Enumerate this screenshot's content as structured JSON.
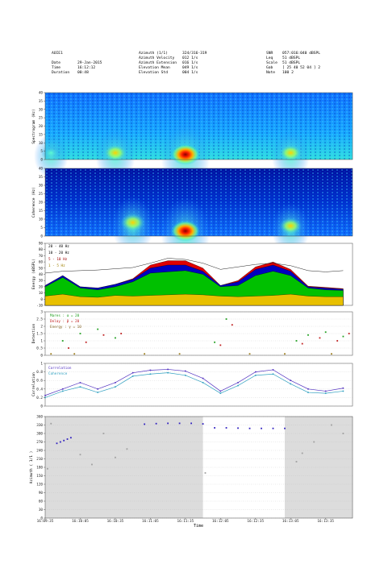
{
  "header": {
    "station": "AOIE1",
    "col1": [
      {
        "label": "Date",
        "value": "29-Jan-2015"
      },
      {
        "label": "Time",
        "value": "16:12:12"
      },
      {
        "label": "Duration",
        "value": "00:48"
      }
    ],
    "col2": [
      {
        "label": "Azimuth (1/1)",
        "value": "324/316-319"
      },
      {
        "label": "Azimuth Velocity",
        "value": "012 1/s"
      },
      {
        "label": "Azimuth Extension",
        "value": "016 1/s"
      },
      {
        "label": "Elevation Mean",
        "value": "049 1/s"
      },
      {
        "label": "Elevation Std",
        "value": "004 1/s"
      }
    ],
    "col3": [
      {
        "label": "SNR",
        "value": "057:016:040 dBSPL"
      },
      {
        "label": "Leq",
        "value": "51 dBSPL"
      },
      {
        "label": "Scale",
        "value": "51 dBSPL"
      },
      {
        "label": "Gab",
        "value": "[ 25 40 52 04 ] 2"
      },
      {
        "label": "Note",
        "value": "100 2"
      }
    ]
  },
  "panels": {
    "spectrogram": {
      "ylabel": "Spectrogram (Hz)",
      "yticks": [
        "0",
        "5",
        "10",
        "15",
        "20",
        "25",
        "30",
        "35",
        "40"
      ]
    },
    "coherence": {
      "ylabel": "Coherence (Hz)",
      "yticks": [
        "0",
        "5",
        "10",
        "15",
        "20",
        "25",
        "30",
        "35",
        "40"
      ]
    },
    "energy": {
      "ylabel": "Energy (dBSPL)",
      "yticks": [
        "-10",
        "0",
        "10",
        "20",
        "30",
        "40",
        "50",
        "60",
        "70",
        "80",
        "90"
      ]
    },
    "detection": {
      "ylabel": "Detection",
      "yticks": [
        "0",
        "0.5",
        "1",
        "1.5",
        "2",
        "2.5",
        "3"
      ]
    },
    "correlation": {
      "ylabel": "Correlation",
      "yticks": [
        "0",
        "0.2",
        "0.4",
        "0.6",
        "0.8",
        "1"
      ]
    },
    "azimuth": {
      "ylabel": "Azimuth ( 1/1 )",
      "yticks": [
        "0",
        "30",
        "60",
        "90",
        "120",
        "150",
        "180",
        "210",
        "240",
        "270",
        "300",
        "330",
        "360"
      ]
    }
  },
  "xlabel": "Time",
  "xticks": [
    "16:09:35",
    "16:10:05",
    "16:10:35",
    "16:11:05",
    "16:11:35",
    "16:12:05",
    "16:12:35",
    "16:13:05",
    "16:13:35"
  ],
  "chart_data": [
    {
      "type": "heatmap",
      "name": "spectrogram",
      "ylabel": "Spectrogram (Hz)",
      "ylim": [
        0,
        40
      ],
      "hotspots": [
        {
          "t": "16:11:35",
          "f_hz": 3,
          "level": 1.0
        },
        {
          "t": "16:10:35",
          "f_hz": 4,
          "level": 0.75
        },
        {
          "t": "16:13:05",
          "f_hz": 4,
          "level": 0.7
        },
        {
          "t": "16:09:40",
          "f_hz": 4,
          "level": 0.6
        }
      ]
    },
    {
      "type": "heatmap",
      "name": "coherence",
      "ylabel": "Coherence (Hz)",
      "ylim": [
        0,
        40
      ],
      "hotspots": [
        {
          "t": "16:11:35",
          "f_hz": 3,
          "level": 1.0
        },
        {
          "t": "16:10:50",
          "f_hz": 8,
          "level": 0.8
        },
        {
          "t": "16:13:05",
          "f_hz": 6,
          "level": 0.7
        }
      ]
    },
    {
      "type": "area",
      "name": "energy",
      "ylabel": "Energy (dBSPL)",
      "ylim": [
        -10,
        90
      ],
      "legend": [
        "20 - 40 Hz",
        "10 - 20 Hz",
        "5 - 10 Hz",
        "1 - 5 Hz"
      ],
      "x": [
        "16:09:35",
        "16:09:50",
        "16:10:05",
        "16:10:20",
        "16:10:35",
        "16:10:50",
        "16:11:05",
        "16:11:20",
        "16:11:35",
        "16:11:50",
        "16:12:05",
        "16:12:20",
        "16:12:35",
        "16:12:50",
        "16:13:05",
        "16:13:20",
        "16:13:35",
        "16:13:50"
      ],
      "series": [
        {
          "name": "1 - 5 Hz",
          "values": [
            5,
            8,
            4,
            3,
            6,
            5,
            6,
            7,
            8,
            7,
            5,
            4,
            5,
            6,
            8,
            5,
            4,
            4
          ]
        },
        {
          "name": "5 - 10 Hz",
          "values": [
            20,
            35,
            18,
            15,
            20,
            28,
            42,
            44,
            46,
            40,
            20,
            22,
            38,
            45,
            38,
            18,
            15,
            14
          ]
        },
        {
          "name": "10 - 20 Hz",
          "values": [
            22,
            38,
            20,
            18,
            24,
            32,
            50,
            55,
            55,
            45,
            22,
            28,
            48,
            55,
            45,
            20,
            18,
            16
          ]
        },
        {
          "name": "20 - 40 Hz",
          "values": [
            22,
            38,
            20,
            18,
            24,
            33,
            55,
            62,
            62,
            50,
            22,
            30,
            52,
            60,
            48,
            21,
            19,
            17
          ]
        },
        {
          "name": "total",
          "values": [
            42,
            45,
            46,
            47,
            49,
            51,
            58,
            66,
            64,
            58,
            48,
            52,
            56,
            58,
            54,
            46,
            44,
            46
          ]
        }
      ]
    },
    {
      "type": "scatter",
      "name": "detection",
      "ylabel": "Detection",
      "ylim": [
        0,
        3
      ],
      "legend": [
        "Mares : α = 20",
        "Delay : β = 20",
        "Energy : γ = 10"
      ],
      "series": [
        {
          "name": "Mares : α = 20",
          "x": [
            "16:09:50",
            "16:10:05",
            "16:10:20",
            "16:10:35",
            "16:12:00",
            "16:12:10",
            "16:13:10",
            "16:13:20",
            "16:13:35",
            "16:13:50"
          ],
          "values": [
            1.0,
            1.5,
            1.8,
            1.2,
            0.9,
            2.5,
            1.0,
            1.4,
            1.6,
            1.3
          ]
        },
        {
          "name": "Delay : β = 20",
          "x": [
            "16:09:55",
            "16:10:10",
            "16:10:25",
            "16:10:40",
            "16:12:05",
            "16:12:15",
            "16:13:15",
            "16:13:30",
            "16:13:45",
            "16:13:55"
          ],
          "values": [
            0.5,
            0.9,
            1.4,
            1.5,
            0.7,
            2.1,
            0.8,
            1.2,
            1.0,
            1.5
          ]
        },
        {
          "name": "Energy : γ = 10",
          "x": [
            "16:09:40",
            "16:10:00",
            "16:11:00",
            "16:11:30",
            "16:12:30",
            "16:13:00",
            "16:13:40"
          ],
          "values": [
            0.1,
            0.1,
            0.1,
            0.1,
            0.1,
            0.1,
            0.1
          ]
        }
      ]
    },
    {
      "type": "line",
      "name": "correlation",
      "ylabel": "Correlation",
      "ylim": [
        0,
        1
      ],
      "legend": [
        "Correlation",
        "Coherence"
      ],
      "x": [
        "16:09:35",
        "16:09:50",
        "16:10:05",
        "16:10:20",
        "16:10:35",
        "16:10:50",
        "16:11:05",
        "16:11:20",
        "16:11:35",
        "16:11:50",
        "16:12:05",
        "16:12:20",
        "16:12:35",
        "16:12:50",
        "16:13:05",
        "16:13:20",
        "16:13:35",
        "16:13:50"
      ],
      "series": [
        {
          "name": "Correlation",
          "values": [
            0.25,
            0.4,
            0.55,
            0.4,
            0.55,
            0.78,
            0.84,
            0.86,
            0.82,
            0.65,
            0.35,
            0.55,
            0.8,
            0.85,
            0.6,
            0.4,
            0.35,
            0.42
          ]
        },
        {
          "name": "Coherence",
          "values": [
            0.2,
            0.35,
            0.45,
            0.32,
            0.45,
            0.7,
            0.75,
            0.78,
            0.72,
            0.55,
            0.3,
            0.48,
            0.72,
            0.75,
            0.52,
            0.32,
            0.3,
            0.35
          ]
        }
      ]
    },
    {
      "type": "scatter",
      "name": "azimuth",
      "ylabel": "Azimuth ( 1/1 )",
      "ylim": [
        0,
        360
      ],
      "shaded_intervals": [
        [
          "16:09:35",
          "16:11:50"
        ],
        [
          "16:13:00",
          "16:13:58"
        ]
      ],
      "series": [
        {
          "name": "detected",
          "x": [
            "16:09:45",
            "16:09:48",
            "16:09:51",
            "16:09:54",
            "16:09:57",
            "16:11:00",
            "16:11:10",
            "16:11:20",
            "16:11:30",
            "16:11:40",
            "16:11:50",
            "16:12:00",
            "16:12:10",
            "16:12:20",
            "16:12:30",
            "16:12:40",
            "16:12:50",
            "16:13:00"
          ],
          "values": [
            265,
            270,
            275,
            280,
            285,
            333,
            335,
            336,
            336,
            336,
            334,
            320,
            320,
            319,
            318,
            318,
            318,
            318
          ]
        },
        {
          "name": "rejected",
          "x": [
            "16:09:37",
            "16:09:40",
            "16:10:05",
            "16:10:15",
            "16:10:25",
            "16:10:35",
            "16:10:45",
            "16:11:52",
            "16:13:10",
            "16:13:15",
            "16:13:25",
            "16:13:40",
            "16:13:50"
          ],
          "values": [
            175,
            335,
            225,
            190,
            300,
            215,
            245,
            160,
            200,
            230,
            270,
            330,
            300
          ]
        }
      ]
    }
  ]
}
